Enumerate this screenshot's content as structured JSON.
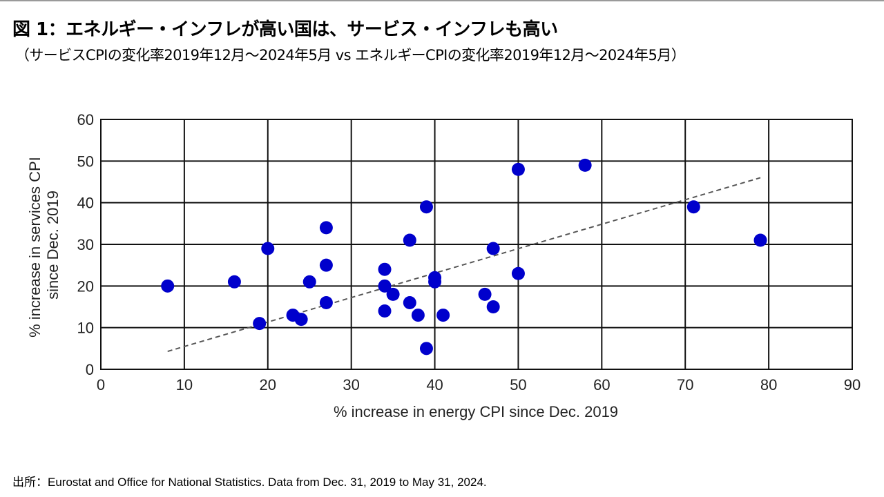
{
  "title": "図 1：エネルギー・インフレが高い国は、サービス・インフレも高い",
  "subtitle": "（サービスCPIの変化率2019年12月～2024年5月 vs エネルギーCPIの変化率2019年12月～2024年5月）",
  "source": "出所：Eurostat and Office for National Statistics. Data from Dec. 31, 2019 to May 31, 2024.",
  "chart_data": {
    "type": "scatter",
    "xlabel": "% increase in energy CPI since Dec. 2019",
    "ylabel_lines": [
      "% increase in services CPI",
      "since Dec. 2019"
    ],
    "xlim": [
      0,
      90
    ],
    "ylim": [
      0,
      60
    ],
    "xticks": [
      0,
      10,
      20,
      30,
      40,
      50,
      60,
      70,
      80,
      90
    ],
    "yticks": [
      0,
      10,
      20,
      30,
      40,
      50,
      60
    ],
    "grid": true,
    "marker_color": "#0000cc",
    "trendline": {
      "style": "dashed",
      "color": "#555555",
      "x": [
        8,
        79
      ],
      "y": [
        4.3,
        46
      ]
    },
    "points": [
      {
        "x": 8,
        "y": 20
      },
      {
        "x": 16,
        "y": 21
      },
      {
        "x": 19,
        "y": 11
      },
      {
        "x": 20,
        "y": 29
      },
      {
        "x": 23,
        "y": 13
      },
      {
        "x": 24,
        "y": 12
      },
      {
        "x": 25,
        "y": 21
      },
      {
        "x": 27,
        "y": 34
      },
      {
        "x": 27,
        "y": 25
      },
      {
        "x": 27,
        "y": 16
      },
      {
        "x": 34,
        "y": 24
      },
      {
        "x": 34,
        "y": 20
      },
      {
        "x": 34,
        "y": 14
      },
      {
        "x": 35,
        "y": 18
      },
      {
        "x": 37,
        "y": 31
      },
      {
        "x": 37,
        "y": 16
      },
      {
        "x": 38,
        "y": 13
      },
      {
        "x": 39,
        "y": 39
      },
      {
        "x": 39,
        "y": 5
      },
      {
        "x": 40,
        "y": 22
      },
      {
        "x": 40,
        "y": 21
      },
      {
        "x": 41,
        "y": 13
      },
      {
        "x": 46,
        "y": 18
      },
      {
        "x": 47,
        "y": 29
      },
      {
        "x": 47,
        "y": 15
      },
      {
        "x": 50,
        "y": 48
      },
      {
        "x": 50,
        "y": 23
      },
      {
        "x": 58,
        "y": 49
      },
      {
        "x": 71,
        "y": 39
      },
      {
        "x": 79,
        "y": 31
      }
    ]
  }
}
